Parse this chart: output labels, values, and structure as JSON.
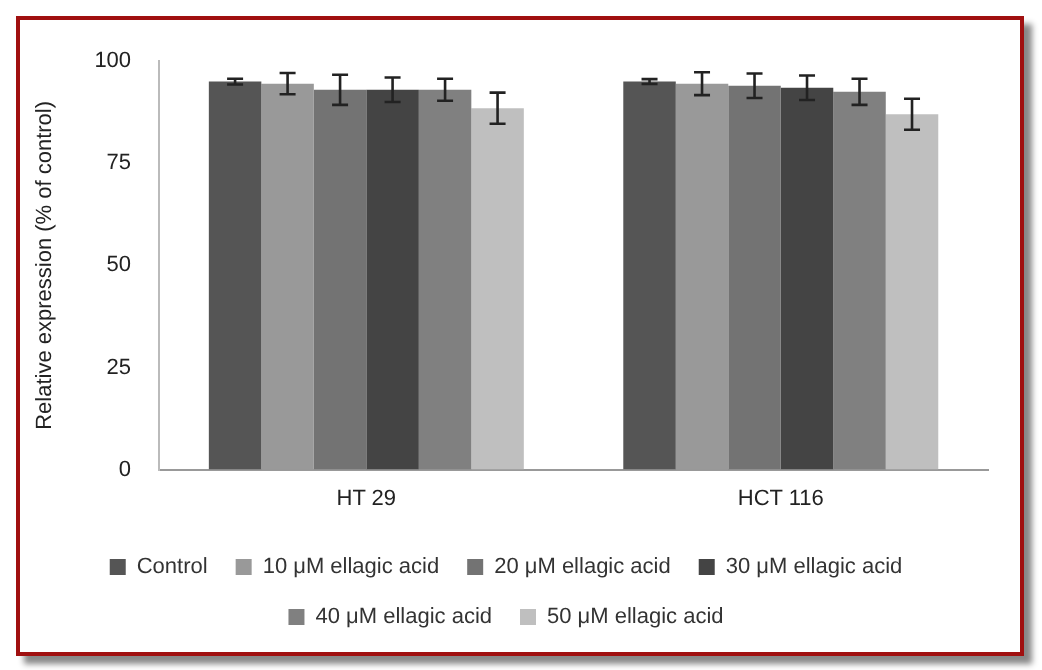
{
  "chart_data": {
    "type": "bar",
    "ylabel": "Relative expression (% of control)",
    "categories": [
      "HT 29",
      "HCT 116"
    ],
    "series": [
      {
        "name": "Control",
        "color": "#555555",
        "values": [
          95,
          95
        ],
        "errors": [
          0.7,
          0.6
        ]
      },
      {
        "name": "10 μM ellagic acid",
        "color": "#999999",
        "values": [
          94.5,
          94.5
        ],
        "errors": [
          2.6,
          2.8
        ]
      },
      {
        "name": "20 μM ellagic acid",
        "color": "#737373",
        "values": [
          93,
          94
        ],
        "errors": [
          3.7,
          3
        ]
      },
      {
        "name": "30 μM ellagic acid",
        "color": "#444444",
        "values": [
          93,
          93.5
        ],
        "errors": [
          3,
          3
        ]
      },
      {
        "name": "40 μM ellagic acid",
        "color": "#808080",
        "values": [
          93,
          92.5
        ],
        "errors": [
          2.7,
          3.2
        ]
      },
      {
        "name": "50 μM ellagic acid",
        "color": "#bfbfbf",
        "values": [
          88.5,
          87
        ],
        "errors": [
          3.8,
          3.8
        ]
      }
    ],
    "ylim": [
      0,
      100
    ],
    "yticks": [
      0,
      25,
      50,
      75,
      100
    ],
    "grid": false,
    "legend": "bottom"
  }
}
